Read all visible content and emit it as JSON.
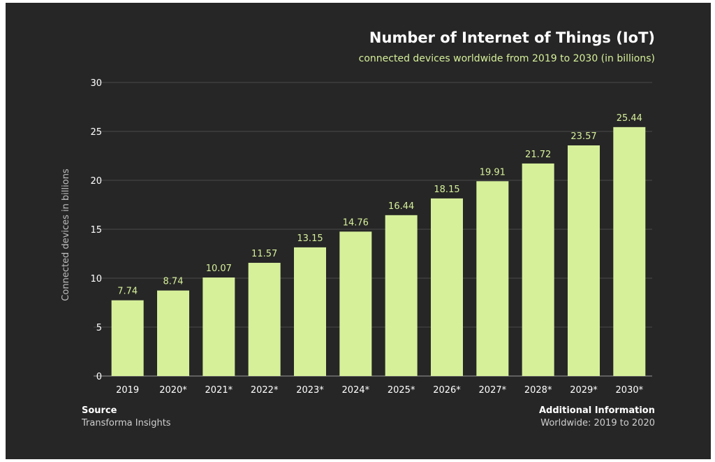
{
  "header": {
    "title": "Number of Internet of Things (IoT)",
    "subtitle": "connected devices worldwide from 2019 to 2030 (in billions)"
  },
  "footer": {
    "source_heading": "Source",
    "source_text": "Transforma Insights",
    "info_heading": "Additional Information",
    "info_text": "Worldwide: 2019 to 2020"
  },
  "colors": {
    "background": "#262626",
    "bar": "#d6f09a",
    "grid": "#4a4a4a",
    "text": "#ffffff"
  },
  "chart_data": {
    "type": "bar",
    "title": "Number of Internet of Things (IoT)",
    "subtitle": "connected devices worldwide from 2019 to 2030 (in billions)",
    "xlabel": "",
    "ylabel": "Connected devices in billions",
    "categories": [
      "2019",
      "2020*",
      "2021*",
      "2022*",
      "2023*",
      "2024*",
      "2025*",
      "2026*",
      "2027*",
      "2028*",
      "2029*",
      "2030*"
    ],
    "values": [
      7.74,
      8.74,
      10.07,
      11.57,
      13.15,
      14.76,
      16.44,
      18.15,
      19.91,
      21.72,
      23.57,
      25.44
    ],
    "data_labels": [
      "7.74",
      "8.74",
      "10.07",
      "11.57",
      "13.15",
      "14.76",
      "16.44",
      "18.15",
      "19.91",
      "21.72",
      "23.57",
      "25.44"
    ],
    "ylim": [
      0,
      30
    ],
    "yticks": [
      0,
      5,
      10,
      15,
      20,
      25,
      30
    ],
    "grid": true,
    "legend": false
  }
}
